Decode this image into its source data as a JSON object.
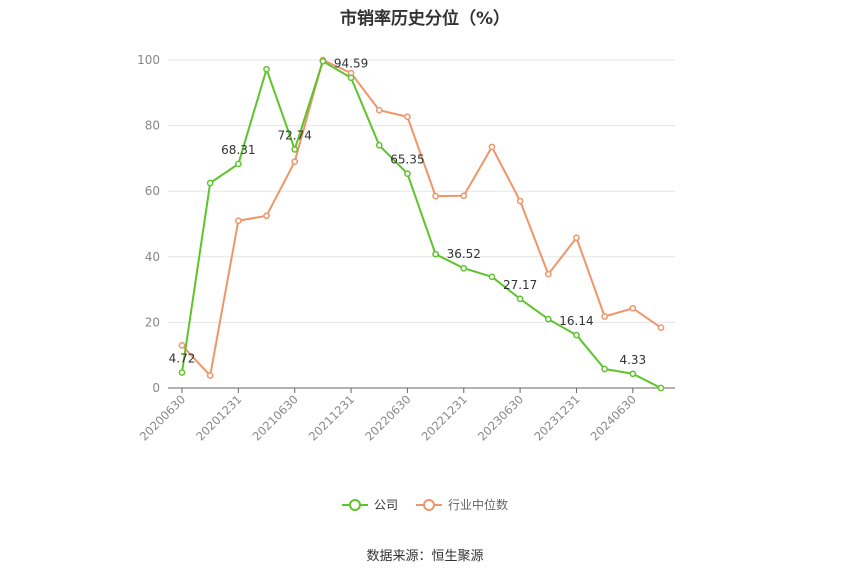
{
  "chart_data": {
    "type": "line",
    "title": "市销率历史分位（%）",
    "xlabel": "",
    "ylabel": "",
    "ylim": [
      0,
      100
    ],
    "yticks": [
      0,
      20,
      40,
      60,
      80,
      100
    ],
    "x": [
      "20200630",
      "20200930",
      "20201231",
      "20210331",
      "20210630",
      "20210930",
      "20211231",
      "20220331",
      "20220630",
      "20220930",
      "20221231",
      "20230331",
      "20230630",
      "20230930",
      "20231231",
      "20240331",
      "20240630",
      "20240930"
    ],
    "xtick_labels": [
      "20200630",
      "20201231",
      "20210630",
      "20211231",
      "20220630",
      "20221231",
      "20230630",
      "20231231",
      "20240630"
    ],
    "grid": true,
    "legend_position": "bottom",
    "series": [
      {
        "name": "公司",
        "color": "#5dc42b",
        "values": [
          4.72,
          62.5,
          68.31,
          97.2,
          72.74,
          99.6,
          94.59,
          74.0,
          65.35,
          40.8,
          36.52,
          33.9,
          27.17,
          21.0,
          16.14,
          5.8,
          4.33,
          0.0
        ],
        "labels": [
          {
            "index": 0,
            "text": "4.72"
          },
          {
            "index": 2,
            "text": "68.31"
          },
          {
            "index": 4,
            "text": "72.74"
          },
          {
            "index": 6,
            "text": "94.59"
          },
          {
            "index": 8,
            "text": "65.35"
          },
          {
            "index": 10,
            "text": "36.52"
          },
          {
            "index": 12,
            "text": "27.17"
          },
          {
            "index": 14,
            "text": "16.14"
          },
          {
            "index": 16,
            "text": "4.33"
          }
        ]
      },
      {
        "name": "行业中位数",
        "color": "#f0956a",
        "values": [
          13.0,
          3.8,
          51.0,
          52.5,
          69.0,
          100.0,
          96.0,
          84.7,
          82.7,
          58.5,
          58.6,
          73.5,
          57.0,
          34.7,
          45.8,
          21.8,
          24.3,
          18.4
        ],
        "labels": []
      }
    ]
  },
  "source": "数据来源：恒生聚源"
}
